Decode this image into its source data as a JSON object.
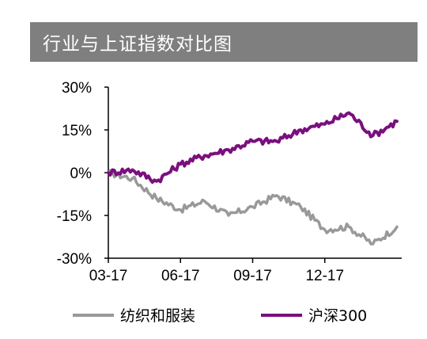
{
  "title": "行业与上证指数对比图",
  "colors": {
    "textile": "#999999",
    "csi300": "#7a0f7e",
    "header_bg": "#7f7f7f"
  },
  "chart_data": {
    "type": "line",
    "title": "行业与上证指数对比图",
    "y_tick_labels": [
      "30%",
      "15%",
      "0%",
      "-15%",
      "-30%"
    ],
    "x_tick_labels": [
      "03-17",
      "06-17",
      "09-17",
      "12-17"
    ],
    "ylim": [
      -30,
      30
    ],
    "y_unit": "%",
    "grid": false,
    "legend_position": "bottom",
    "x": [
      "2017-03",
      "2017-04",
      "2017-05",
      "2017-06",
      "2017-07",
      "2017-08",
      "2017-09",
      "2017-10",
      "2017-11",
      "2017-12",
      "2018-01",
      "2018-02",
      "2018-03"
    ],
    "series": [
      {
        "name": "纺织和服装",
        "color": "#999999",
        "values": [
          0,
          -2,
          -9,
          -13,
          -10,
          -15,
          -12,
          -8,
          -12,
          -20,
          -19,
          -25,
          -19
        ]
      },
      {
        "name": "沪深300",
        "color": "#7a0f7e",
        "values": [
          0,
          1,
          -3,
          3,
          6,
          8,
          11,
          11,
          15,
          17,
          21,
          13,
          18
        ]
      }
    ]
  }
}
